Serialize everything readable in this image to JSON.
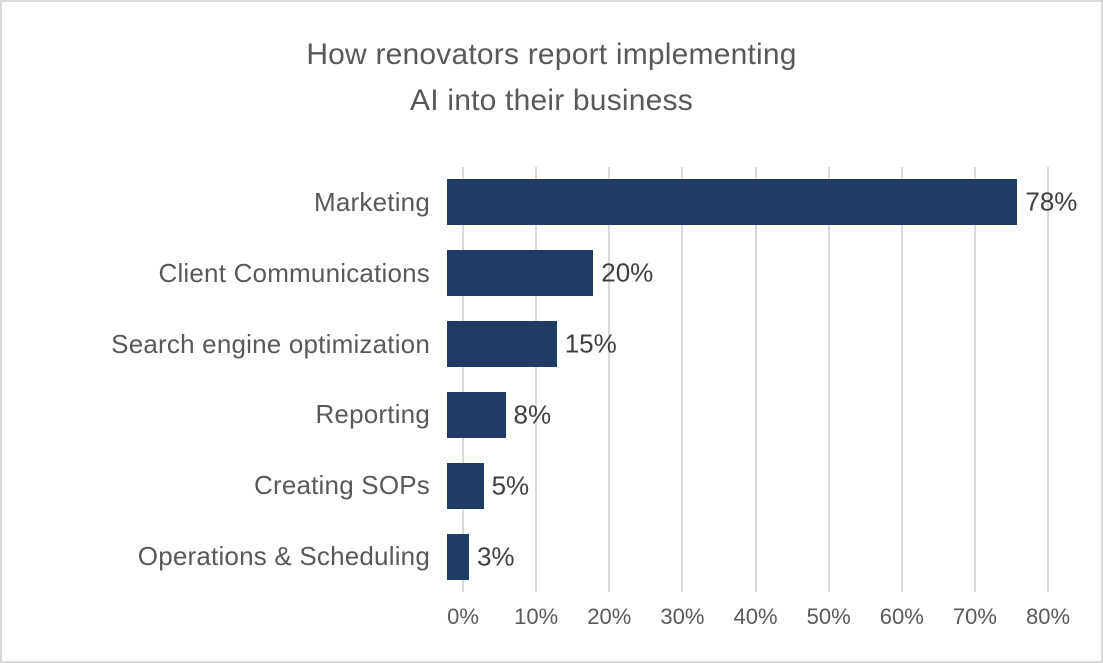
{
  "chart_data": {
    "type": "bar",
    "orientation": "horizontal",
    "title": "How renovators report implementing\nAI into their business",
    "categories": [
      "Marketing",
      "Client Communications",
      "Search engine optimization",
      "Reporting",
      "Creating SOPs",
      "Operations & Scheduling"
    ],
    "values": [
      78,
      20,
      15,
      8,
      5,
      3
    ],
    "rows": [
      {
        "label": "Marketing",
        "value": 78,
        "value_label": "78%"
      },
      {
        "label": "Client Communications",
        "value": 20,
        "value_label": "20%"
      },
      {
        "label": "Search engine optimization",
        "value": 15,
        "value_label": "15%"
      },
      {
        "label": "Reporting",
        "value": 8,
        "value_label": "8%"
      },
      {
        "label": "Creating SOPs",
        "value": 5,
        "value_label": "5%"
      },
      {
        "label": "Operations & Scheduling",
        "value": 3,
        "value_label": "3%"
      }
    ],
    "xlabel": "",
    "ylabel": "",
    "xlim": [
      0,
      80
    ],
    "x_ticks": [
      "0%",
      "10%",
      "20%",
      "30%",
      "40%",
      "50%",
      "60%",
      "70%",
      "80%"
    ],
    "grid": "vertical",
    "legend": "none",
    "colors": {
      "bar": "#1e3c64",
      "title_text": "#595959",
      "category_text": "#595959",
      "value_text": "#3f3f3f",
      "tick_text": "#595959",
      "gridline": "#d9d9d9",
      "border": "#d8d8d8",
      "background": "#ffffff"
    }
  }
}
